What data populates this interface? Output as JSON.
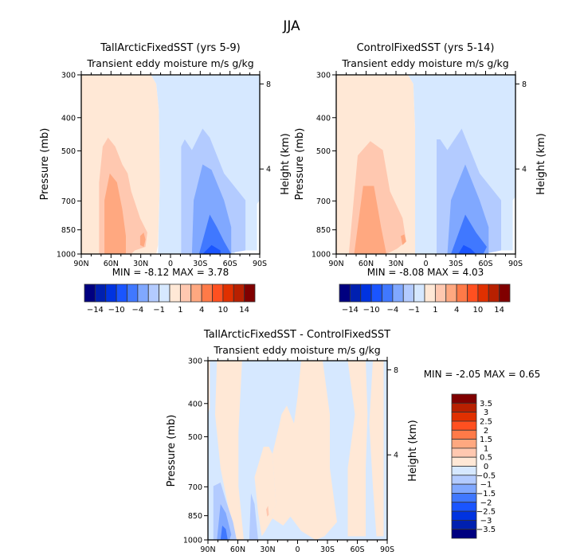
{
  "figure_title": "JJA",
  "colors": {
    "levels_16": [
      "#000080",
      "#0020b0",
      "#0033e0",
      "#1a55ff",
      "#4078ff",
      "#80a8ff",
      "#b3cbff",
      "#d6e8ff",
      "#ffe8d6",
      "#ffc8b0",
      "#ffa880",
      "#ff7a48",
      "#ff5020",
      "#e03000",
      "#b82000",
      "#800000"
    ]
  },
  "chart_data": [
    {
      "type": "heatmap",
      "panel": "top-left",
      "title": "TallArcticFixedSST (yrs 5-9)",
      "subtitle": "Transient eddy moisture m/s g/kg",
      "xlabel": "",
      "ylabel": "Pressure (mb)",
      "ylabel_right": "Height (km)",
      "x_ticks": [
        "90N",
        "60N",
        "30N",
        "0",
        "30S",
        "60S",
        "90S"
      ],
      "x_range": [
        90,
        -90
      ],
      "y_ticks": [
        "300",
        "400",
        "500",
        "700",
        "850",
        "1000"
      ],
      "y_tick_values": [
        300,
        400,
        500,
        700,
        850,
        1000
      ],
      "y_range": [
        1000,
        300
      ],
      "right_ticks": [
        "8",
        "4"
      ],
      "right_tick_values_km": [
        8,
        4
      ],
      "min_label": "MIN =",
      "min_value": "-8.12",
      "max_label": "MAX =",
      "max_value": "3.78",
      "colorbar": {
        "orientation": "horizontal",
        "levels": [
          -14,
          -12,
          -10,
          -8,
          -4,
          -2,
          -1,
          0,
          1,
          2,
          4,
          8,
          10,
          12,
          14
        ],
        "tick_labels": [
          "-14",
          "-10",
          "-4",
          "-1",
          "1",
          "4",
          "10",
          "14"
        ]
      },
      "contour_regions": [
        {
          "level_index": 8,
          "desc": "positive 0..1 band covering 90N to ~5N, 300-1000 mb"
        },
        {
          "level_index": 9,
          "desc": "1..2 band centered ~60N, 480-1000 mb"
        },
        {
          "level_index": 10,
          "desc": "2..4 core centered ~65N, 600-1000 mb"
        },
        {
          "level_index": 7,
          "desc": "-1..0 band from ~5N to 90S"
        },
        {
          "level_index": 6,
          "desc": "-2..-1 band 15S-75S, 450-1000 mb"
        },
        {
          "level_index": 5,
          "desc": "-4..-2 band 25S-70S, 550-1000 mb"
        },
        {
          "level_index": 4,
          "desc": "-8..-4 core ~45S, 770-1000 mb"
        },
        {
          "level_index": 3,
          "desc": "< -8 core ~45S near 1000 mb"
        }
      ]
    },
    {
      "type": "heatmap",
      "panel": "top-right",
      "title": "ControlFixedSST (yrs 5-14)",
      "subtitle": "Transient eddy moisture m/s g/kg",
      "ylabel": "Pressure (mb)",
      "ylabel_right": "Height (km)",
      "x_ticks": [
        "90N",
        "60N",
        "30N",
        "0",
        "30S",
        "60S",
        "90S"
      ],
      "x_range": [
        90,
        -90
      ],
      "y_ticks": [
        "300",
        "400",
        "500",
        "700",
        "850",
        "1000"
      ],
      "y_tick_values": [
        300,
        400,
        500,
        700,
        850,
        1000
      ],
      "y_range": [
        1000,
        300
      ],
      "right_ticks": [
        "8",
        "4"
      ],
      "right_tick_values_km": [
        8,
        4
      ],
      "min_label": "MIN =",
      "min_value": "-8.08",
      "max_label": "MAX =",
      "max_value": "4.03",
      "colorbar": {
        "orientation": "horizontal",
        "levels": [
          -14,
          -12,
          -10,
          -8,
          -4,
          -2,
          -1,
          0,
          1,
          2,
          4,
          8,
          10,
          12,
          14
        ],
        "tick_labels": [
          "-14",
          "-10",
          "-4",
          "-1",
          "1",
          "4",
          "10",
          "14"
        ]
      }
    },
    {
      "type": "heatmap",
      "panel": "bottom",
      "title": "TallArcticFixedSST - ControlFixedSST",
      "subtitle": "Transient eddy moisture m/s g/kg",
      "ylabel": "Pressure (mb)",
      "ylabel_right": "Height (km)",
      "x_ticks": [
        "90N",
        "60N",
        "30N",
        "0",
        "30S",
        "60S",
        "90S"
      ],
      "x_range": [
        90,
        -90
      ],
      "y_ticks": [
        "300",
        "400",
        "500",
        "700",
        "850",
        "1000"
      ],
      "y_tick_values": [
        300,
        400,
        500,
        700,
        850,
        1000
      ],
      "y_range": [
        1000,
        300
      ],
      "right_ticks": [
        "8",
        "4"
      ],
      "right_tick_values_km": [
        8,
        4
      ],
      "min_label": "MIN =",
      "min_value": "-2.05",
      "max_label": "MAX =",
      "max_value": "0.65",
      "colorbar": {
        "orientation": "vertical",
        "levels": [
          -3.5,
          -3,
          -2.5,
          -2,
          -1.5,
          -1,
          -0.5,
          0,
          0.5,
          1,
          1.5,
          2,
          2.5,
          3,
          3.5
        ],
        "tick_labels": [
          "3.5",
          "3",
          "2.5",
          "2",
          "1.5",
          "1",
          "0.5",
          "0",
          "-0.5",
          "-1",
          "-1.5",
          "-2",
          "-2.5",
          "-3",
          "-3.5"
        ]
      }
    }
  ]
}
